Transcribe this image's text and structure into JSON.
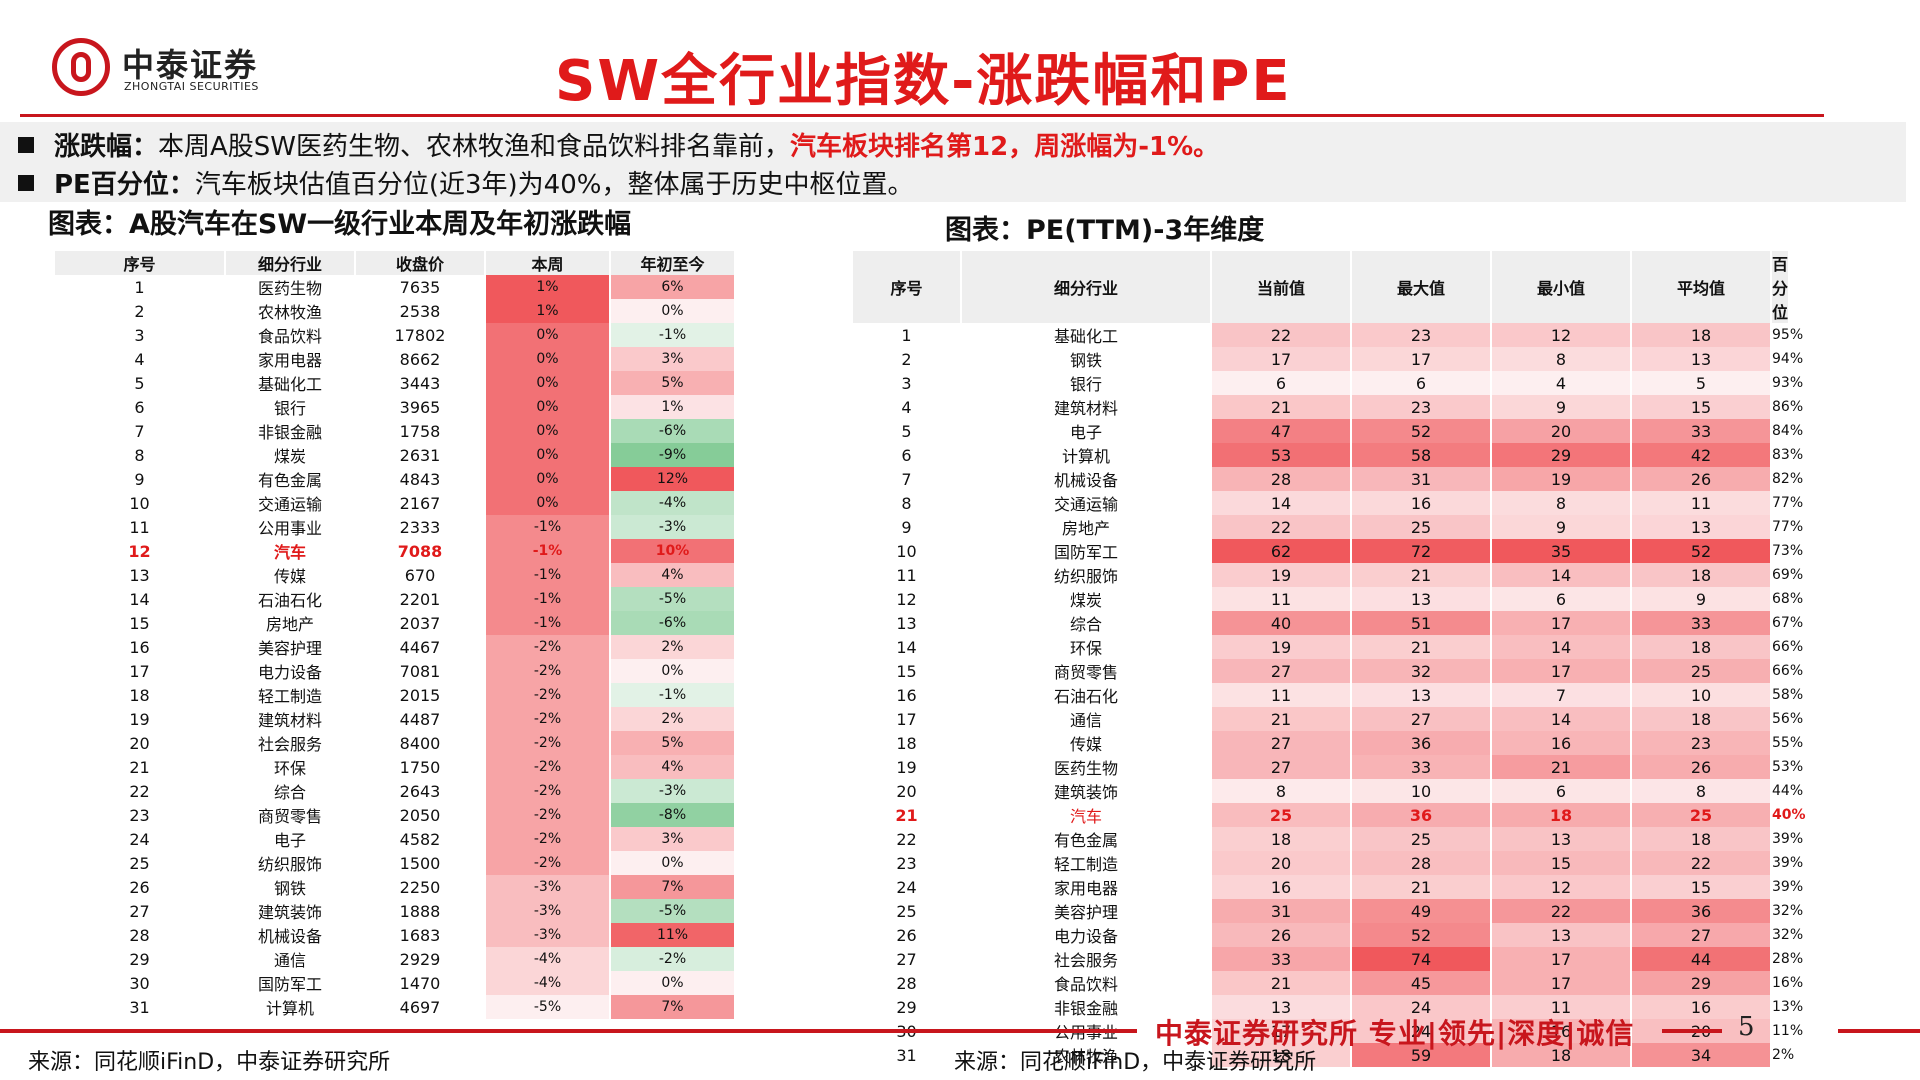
{
  "logo": {
    "cn": "中泰证券",
    "en": "ZHONGTAI SECURITIES"
  },
  "title": "SW全行业指数-涨跌幅和PE",
  "bullets": [
    {
      "label": "涨跌幅：",
      "text": "本周A股SW医药生物、农林牧渔和食品饮料排名靠前，",
      "highlight": "汽车板块排名第12，周涨幅为-1%。"
    },
    {
      "label": "PE百分位：",
      "text": "汽车板块估值百分位(近3年)为40%，整体属于历史中枢位置。",
      "highlight": ""
    }
  ],
  "left_table": {
    "title": "图表：A股汽车在SW一级行业本周及年初涨跌幅",
    "headers": [
      "序号",
      "细分行业",
      "收盘价",
      "本周",
      "年初至今"
    ],
    "highlight_row": 12,
    "rows": [
      [
        1,
        "医药生物",
        7635,
        1,
        6
      ],
      [
        2,
        "农林牧渔",
        2538,
        1,
        0
      ],
      [
        3,
        "食品饮料",
        17802,
        0,
        -1
      ],
      [
        4,
        "家用电器",
        8662,
        0,
        3
      ],
      [
        5,
        "基础化工",
        3443,
        0,
        5
      ],
      [
        6,
        "银行",
        3965,
        0,
        1
      ],
      [
        7,
        "非银金融",
        1758,
        0,
        -6
      ],
      [
        8,
        "煤炭",
        2631,
        0,
        -9
      ],
      [
        9,
        "有色金属",
        4843,
        0,
        12
      ],
      [
        10,
        "交通运输",
        2167,
        0,
        -4
      ],
      [
        11,
        "公用事业",
        2333,
        -1,
        -3
      ],
      [
        12,
        "汽车",
        7088,
        -1,
        10
      ],
      [
        13,
        "传媒",
        670,
        -1,
        4
      ],
      [
        14,
        "石油石化",
        2201,
        -1,
        -5
      ],
      [
        15,
        "房地产",
        2037,
        -1,
        -6
      ],
      [
        16,
        "美容护理",
        4467,
        -2,
        2
      ],
      [
        17,
        "电力设备",
        7081,
        -2,
        0
      ],
      [
        18,
        "轻工制造",
        2015,
        -2,
        -1
      ],
      [
        19,
        "建筑材料",
        4487,
        -2,
        2
      ],
      [
        20,
        "社会服务",
        8400,
        -2,
        5
      ],
      [
        21,
        "环保",
        1750,
        -2,
        4
      ],
      [
        22,
        "综合",
        2643,
        -2,
        -3
      ],
      [
        23,
        "商贸零售",
        2050,
        -2,
        -8
      ],
      [
        24,
        "电子",
        4582,
        -2,
        3
      ],
      [
        25,
        "纺织服饰",
        1500,
        -2,
        0
      ],
      [
        26,
        "钢铁",
        2250,
        -3,
        7
      ],
      [
        27,
        "建筑装饰",
        1888,
        -3,
        -5
      ],
      [
        28,
        "机械设备",
        1683,
        -3,
        11
      ],
      [
        29,
        "通信",
        2929,
        -4,
        -2
      ],
      [
        30,
        "国防军工",
        1470,
        -4,
        0
      ],
      [
        31,
        "计算机",
        4697,
        -5,
        7
      ]
    ],
    "source": "来源：同花顺iFinD，中泰证券研究所"
  },
  "right_table": {
    "title": "图表：PE(TTM)-3年维度",
    "headers": [
      "序号",
      "细分行业",
      "当前值",
      "最大值",
      "最小值",
      "平均值",
      "百分位"
    ],
    "highlight_row": 21,
    "rows": [
      [
        1,
        "基础化工",
        22,
        23,
        12,
        18,
        95
      ],
      [
        2,
        "钢铁",
        17,
        17,
        8,
        13,
        94
      ],
      [
        3,
        "银行",
        6,
        6,
        4,
        5,
        93
      ],
      [
        4,
        "建筑材料",
        21,
        23,
        9,
        15,
        86
      ],
      [
        5,
        "电子",
        47,
        52,
        20,
        33,
        84
      ],
      [
        6,
        "计算机",
        53,
        58,
        29,
        42,
        83
      ],
      [
        7,
        "机械设备",
        28,
        31,
        19,
        26,
        82
      ],
      [
        8,
        "交通运输",
        14,
        16,
        8,
        11,
        77
      ],
      [
        9,
        "房地产",
        22,
        25,
        9,
        13,
        77
      ],
      [
        10,
        "国防军工",
        62,
        72,
        35,
        52,
        73
      ],
      [
        11,
        "纺织服饰",
        19,
        21,
        14,
        18,
        69
      ],
      [
        12,
        "煤炭",
        11,
        13,
        6,
        9,
        68
      ],
      [
        13,
        "综合",
        40,
        51,
        17,
        33,
        67
      ],
      [
        14,
        "环保",
        19,
        21,
        14,
        18,
        66
      ],
      [
        15,
        "商贸零售",
        27,
        32,
        17,
        25,
        66
      ],
      [
        16,
        "石油石化",
        11,
        13,
        7,
        10,
        58
      ],
      [
        17,
        "通信",
        21,
        27,
        14,
        18,
        56
      ],
      [
        18,
        "传媒",
        27,
        36,
        16,
        23,
        55
      ],
      [
        19,
        "医药生物",
        27,
        33,
        21,
        26,
        53
      ],
      [
        20,
        "建筑装饰",
        8,
        10,
        6,
        8,
        44
      ],
      [
        21,
        "汽车",
        25,
        36,
        18,
        25,
        40
      ],
      [
        22,
        "有色金属",
        18,
        25,
        13,
        18,
        39
      ],
      [
        23,
        "轻工制造",
        20,
        28,
        15,
        22,
        39
      ],
      [
        24,
        "家用电器",
        16,
        21,
        12,
        15,
        39
      ],
      [
        25,
        "美容护理",
        31,
        49,
        22,
        36,
        32
      ],
      [
        26,
        "电力设备",
        26,
        52,
        13,
        27,
        32
      ],
      [
        27,
        "社会服务",
        33,
        74,
        17,
        44,
        28
      ],
      [
        28,
        "食品饮料",
        21,
        45,
        17,
        29,
        16
      ],
      [
        29,
        "非银金融",
        13,
        24,
        11,
        16,
        13
      ],
      [
        30,
        "公用事业",
        17,
        24,
        16,
        20,
        11
      ],
      [
        31,
        "农林牧渔",
        18,
        59,
        18,
        34,
        2
      ]
    ],
    "source": "来源：同花顺iFinD，中泰证券研究所"
  },
  "footer": {
    "slogan": "中泰证券研究所 专业|领先|深度|诚信",
    "page": "5"
  },
  "colors": {
    "brand_red": "#c8161d",
    "title_red": "#e01a1a",
    "heat_red": "#f0585c",
    "heat_green": "#63be7b"
  }
}
